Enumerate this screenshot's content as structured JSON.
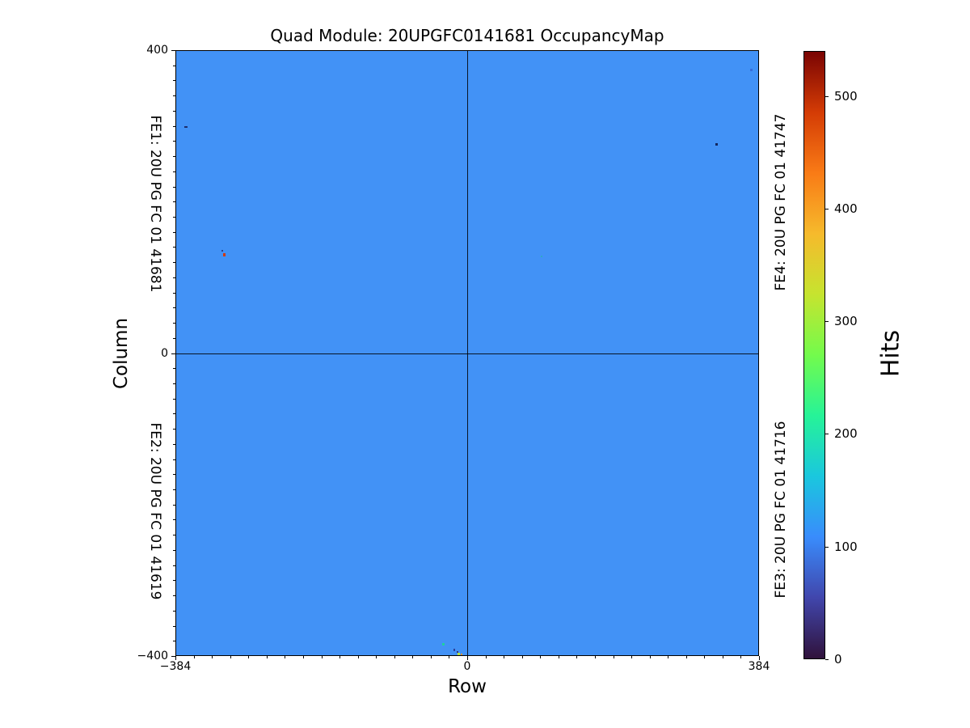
{
  "chart_data": {
    "type": "heatmap",
    "title": "Quad Module: 20UPGFC0141681 OccupancyMap",
    "xlabel": "Row",
    "ylabel": "Column",
    "xlim": [
      -384,
      384
    ],
    "ylim": [
      -400,
      400
    ],
    "x_tick_labels": [
      {
        "label": "−384",
        "f": 0
      },
      {
        "label": "0",
        "f": 0.5
      },
      {
        "label": "384",
        "f": 1
      }
    ],
    "y_tick_labels": [
      {
        "label": "400",
        "f": 0
      },
      {
        "label": "0",
        "f": 0.5
      },
      {
        "label": "−400",
        "f": 1
      }
    ],
    "x_minor_divisions": 32,
    "y_minor_divisions": 40,
    "grid": false,
    "uniform_hits_level": 110,
    "uniform_hits_color": "#4292f6",
    "crosshair": {
      "row": 0,
      "col": 0,
      "color": "#000000"
    },
    "fe_label_color": "#1414ff",
    "front_ends": [
      {
        "id": "FE1",
        "label": "FE1: 20U PG FC 01 41681",
        "position": "left-top"
      },
      {
        "id": "FE2",
        "label": "FE2: 20U PG FC 01 41619",
        "position": "left-bottom"
      },
      {
        "id": "FE3",
        "label": "FE3: 20U PG FC 01 41716",
        "position": "right-bottom"
      },
      {
        "id": "FE4",
        "label": "FE4: 20U PG FC 01 41747",
        "position": "right-top"
      }
    ],
    "colorbar": {
      "label": "Hits",
      "vmin": 0,
      "vmax": 540,
      "ticks": [
        {
          "label": "0",
          "value": 0
        },
        {
          "label": "100",
          "value": 100
        },
        {
          "label": "200",
          "value": 200
        },
        {
          "label": "300",
          "value": 300
        },
        {
          "label": "400",
          "value": 400
        },
        {
          "label": "500",
          "value": 500
        }
      ],
      "colormap": "turbo",
      "gradient_stops": [
        [
          "#30123b",
          0
        ],
        [
          "#4146ac",
          0.1
        ],
        [
          "#398cfc",
          0.2
        ],
        [
          "#1ac7de",
          0.3
        ],
        [
          "#26f398",
          0.4
        ],
        [
          "#73fb4c",
          0.5
        ],
        [
          "#c6e42f",
          0.6
        ],
        [
          "#f6ba2c",
          0.7
        ],
        [
          "#f97b16",
          0.8
        ],
        [
          "#d43c05",
          0.9
        ],
        [
          "#7a0403",
          1
        ]
      ]
    },
    "anomaly_pixels": [
      {
        "row": -371,
        "col": 299,
        "color": "#1c2f6e",
        "w": 4,
        "h": 2
      },
      {
        "row": -323,
        "col": 136,
        "color": "#27408f",
        "w": 2,
        "h": 2
      },
      {
        "row": -321,
        "col": 130,
        "color": "#cf3b10",
        "w": 3,
        "h": 4
      },
      {
        "row": 329,
        "col": 276,
        "color": "#12275e",
        "w": 3,
        "h": 3
      },
      {
        "row": 375,
        "col": 375,
        "color": "#3a6fd8",
        "w": 3,
        "h": 3
      },
      {
        "row": 98,
        "col": 128,
        "color": "#2fa8c8",
        "w": 2,
        "h": 2
      },
      {
        "row": -32,
        "col": -386,
        "color": "#1fd0a0",
        "w": 3,
        "h": 3
      },
      {
        "row": -17,
        "col": -393,
        "color": "#2b3f9a",
        "w": 2,
        "h": 3
      },
      {
        "row": -13,
        "col": -396,
        "color": "#39307a",
        "w": 2,
        "h": 2
      },
      {
        "row": -11,
        "col": -398,
        "color": "#b8e23a",
        "w": 3,
        "h": 3
      },
      {
        "row": -8,
        "col": -399,
        "color": "#e0952b",
        "w": 2,
        "h": 2
      }
    ]
  }
}
